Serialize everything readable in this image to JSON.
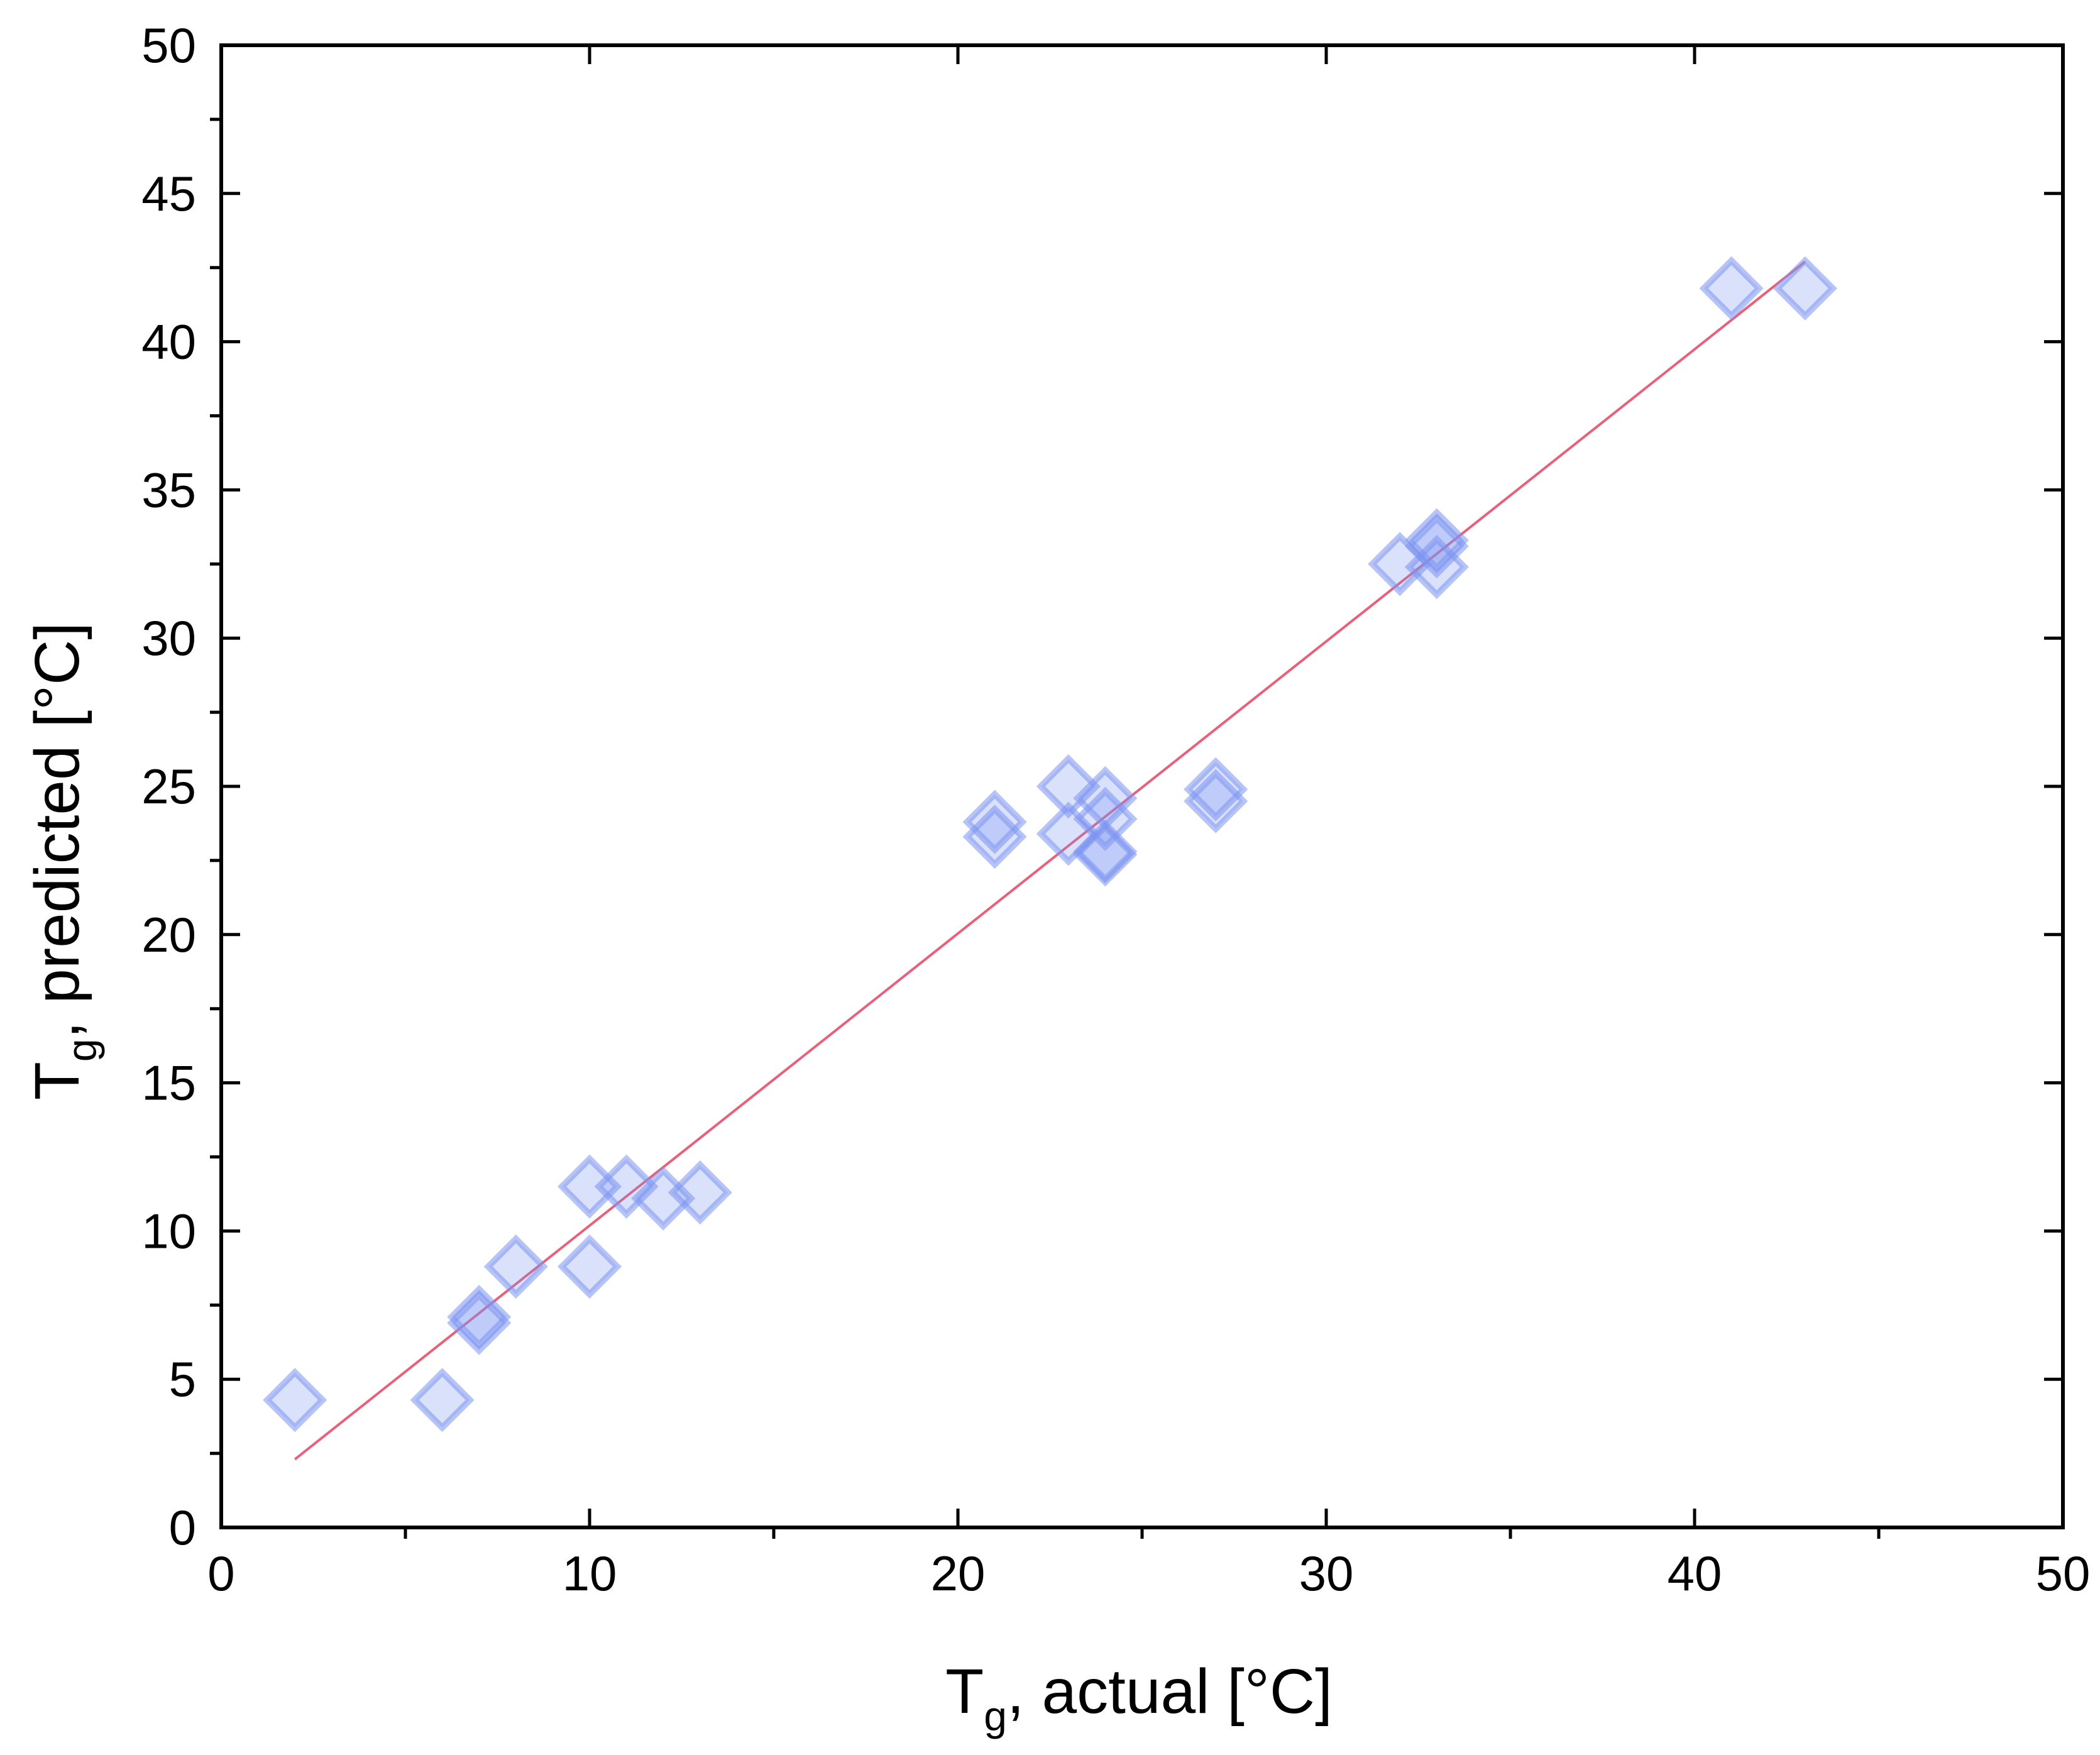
{
  "chart_data": {
    "type": "scatter",
    "xlabel": {
      "main": "T",
      "sub": "g",
      "rest": ", actual [°C]"
    },
    "ylabel": {
      "main": "T",
      "sub": "g",
      "rest": ", predicted [°C]"
    },
    "xlim": [
      0,
      50
    ],
    "ylim": [
      0,
      50
    ],
    "x_ticks": [
      0,
      10,
      20,
      30,
      40,
      50
    ],
    "y_ticks": [
      0,
      5,
      10,
      15,
      20,
      25,
      30,
      35,
      40,
      45,
      50
    ],
    "grid": false,
    "legend": "none",
    "series": [
      {
        "marker": "diamond",
        "color": "#7b93f0",
        "points": [
          [
            2,
            4.3
          ],
          [
            6,
            4.3
          ],
          [
            7,
            6.9
          ],
          [
            7,
            7.1
          ],
          [
            8,
            8.8
          ],
          [
            10,
            8.8
          ],
          [
            10,
            11.5
          ],
          [
            11,
            11.5
          ],
          [
            12,
            11.1
          ],
          [
            13,
            11.3
          ],
          [
            21,
            23.3
          ],
          [
            21,
            23.8
          ],
          [
            23,
            25.0
          ],
          [
            23,
            23.4
          ],
          [
            24,
            24.6
          ],
          [
            24,
            23.9
          ],
          [
            24,
            22.8
          ],
          [
            24,
            22.7
          ],
          [
            27,
            24.5
          ],
          [
            27,
            24.9
          ],
          [
            32,
            32.5
          ],
          [
            33,
            32.4
          ],
          [
            33,
            33.3
          ],
          [
            33,
            33.1
          ],
          [
            41,
            41.8
          ],
          [
            43,
            41.8
          ]
        ]
      },
      {
        "type": "line",
        "color": "#e8607a",
        "x": [
          2,
          43
        ],
        "y": [
          2.3,
          42.7
        ]
      }
    ]
  }
}
